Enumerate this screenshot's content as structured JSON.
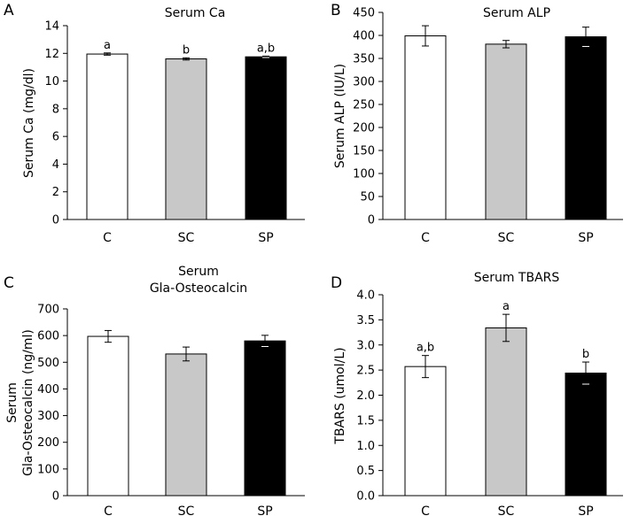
{
  "chart_data": [
    {
      "panel": "A",
      "type": "bar",
      "title": "Serum Ca",
      "title_lines": [
        "Serum Ca"
      ],
      "ylabel": "Serum Ca (mg/dl)",
      "ylabel_lines": [
        "Serum Ca (mg/dl)"
      ],
      "xlabel": "",
      "categories": [
        "C",
        "SC",
        "SP"
      ],
      "values": [
        11.95,
        11.6,
        11.75
      ],
      "errors": [
        0.08,
        0.08,
        0.05
      ],
      "annotations": [
        "a",
        "b",
        "a,b"
      ],
      "bar_colors": [
        "#ffffff",
        "#c8c8c8",
        "#000000"
      ],
      "ylim": [
        0,
        14
      ],
      "yticks": [
        0,
        2,
        4,
        6,
        8,
        10,
        12,
        14
      ],
      "ytick_labels": [
        "0",
        "2",
        "4",
        "6",
        "8",
        "10",
        "12",
        "14"
      ],
      "grid": false
    },
    {
      "panel": "B",
      "type": "bar",
      "title": "Serum ALP",
      "title_lines": [
        "Serum ALP"
      ],
      "ylabel": "Serum ALP (IU/L)",
      "ylabel_lines": [
        "Serum ALP (IU/L)"
      ],
      "xlabel": "",
      "categories": [
        "C",
        "SC",
        "SP"
      ],
      "values": [
        399,
        381,
        397
      ],
      "errors": [
        22,
        8,
        21
      ],
      "annotations": [
        "",
        "",
        ""
      ],
      "bar_colors": [
        "#ffffff",
        "#c8c8c8",
        "#000000"
      ],
      "ylim": [
        0,
        450
      ],
      "yticks": [
        0,
        50,
        100,
        150,
        200,
        250,
        300,
        350,
        400,
        450
      ],
      "ytick_labels": [
        "0",
        "50",
        "100",
        "150",
        "200",
        "250",
        "300",
        "350",
        "400",
        "450"
      ],
      "grid": false
    },
    {
      "panel": "C",
      "type": "bar",
      "title": "Serum Gla-Osteocalcin",
      "title_lines": [
        "Serum",
        "Gla-Osteocalcin"
      ],
      "ylabel": "Serum Gla-Osteocalcin (ng/ml)",
      "ylabel_lines": [
        "Serum",
        "Gla-Osteocalcin (ng/ml)"
      ],
      "xlabel": "",
      "categories": [
        "C",
        "SC",
        "SP"
      ],
      "values": [
        597,
        531,
        580
      ],
      "errors": [
        22,
        26,
        21
      ],
      "annotations": [
        "",
        "",
        ""
      ],
      "bar_colors": [
        "#ffffff",
        "#c8c8c8",
        "#000000"
      ],
      "ylim": [
        0,
        700
      ],
      "yticks": [
        0,
        100,
        200,
        300,
        400,
        500,
        600,
        700
      ],
      "ytick_labels": [
        "0",
        "100",
        "200",
        "300",
        "400",
        "500",
        "600",
        "700"
      ],
      "grid": false
    },
    {
      "panel": "D",
      "type": "bar",
      "title": "Serum TBARS",
      "title_lines": [
        "Serum TBARS"
      ],
      "ylabel": "TBARS (umol/L)",
      "ylabel_lines": [
        "TBARS (umol/L)"
      ],
      "xlabel": "",
      "categories": [
        "C",
        "SC",
        "SP"
      ],
      "values": [
        2.57,
        3.34,
        2.44
      ],
      "errors": [
        0.22,
        0.27,
        0.22
      ],
      "annotations": [
        "a,b",
        "a",
        "b"
      ],
      "bar_colors": [
        "#ffffff",
        "#c8c8c8",
        "#000000"
      ],
      "ylim": [
        0,
        4.0
      ],
      "yticks": [
        0,
        0.5,
        1.0,
        1.5,
        2.0,
        2.5,
        3.0,
        3.5,
        4.0
      ],
      "ytick_labels": [
        "0.0",
        "0.5",
        "1.0",
        "1.5",
        "2.0",
        "2.5",
        "3.0",
        "3.5",
        "4.0"
      ],
      "grid": false
    }
  ]
}
